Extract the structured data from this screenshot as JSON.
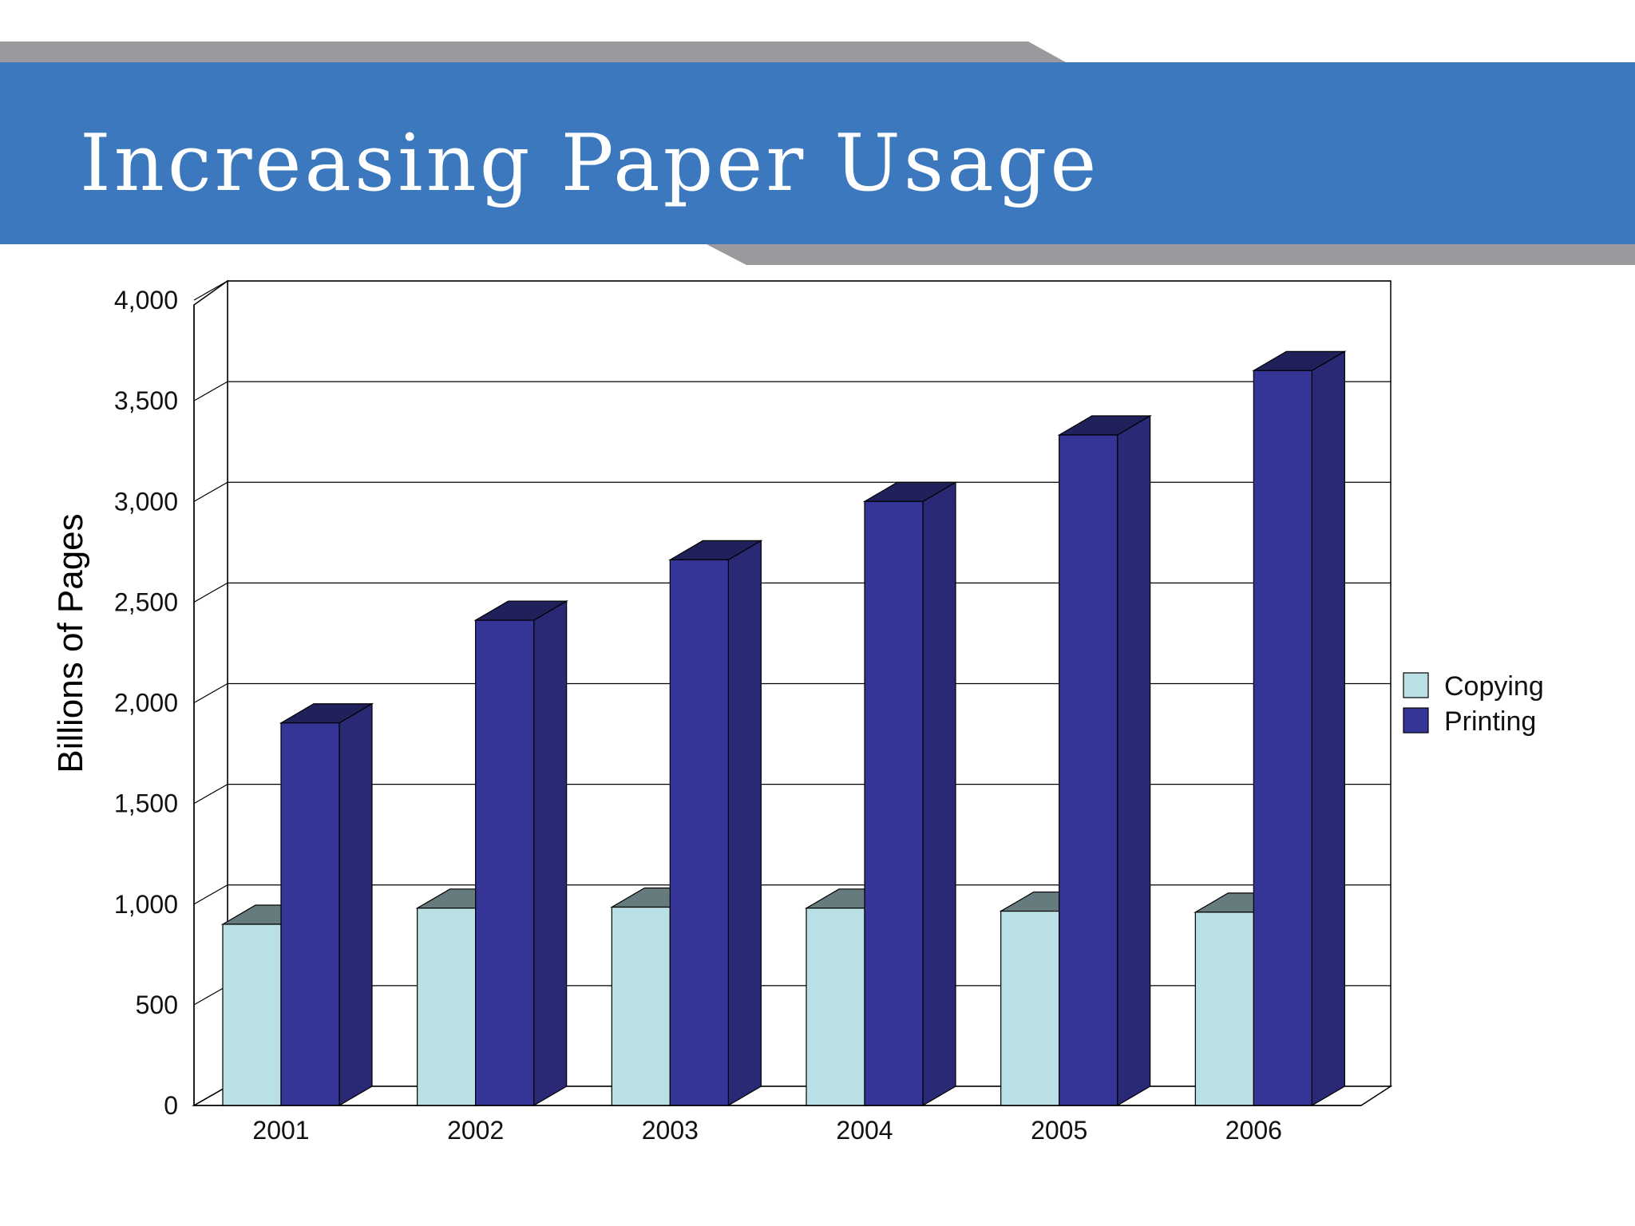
{
  "slide": {
    "title": "Increasing Paper Usage",
    "colors": {
      "header_blue": "#3b78be",
      "header_gray": "#9a9a9e"
    }
  },
  "chart_data": {
    "type": "bar",
    "style": "3d-clustered",
    "categories": [
      "2001",
      "2002",
      "2003",
      "2004",
      "2005",
      "2006"
    ],
    "series": [
      {
        "name": "Copying",
        "values": [
          900,
          980,
          985,
          980,
          965,
          960
        ],
        "color": "#b9e0e4"
      },
      {
        "name": "Printing",
        "values": [
          1900,
          2410,
          2710,
          3000,
          3330,
          3650
        ],
        "color": "#353597"
      }
    ],
    "ylabel": "Billions of Pages",
    "xlabel": "",
    "ylim": [
      0,
      4000
    ],
    "yticks": [
      0,
      500,
      1000,
      1500,
      2000,
      2500,
      3000,
      3500,
      4000
    ],
    "ytick_labels": [
      "0",
      "500",
      "1,000",
      "1,500",
      "2,000",
      "2,500",
      "3,000",
      "3,500",
      "4,000"
    ],
    "grid": true,
    "legend_position": "right"
  }
}
